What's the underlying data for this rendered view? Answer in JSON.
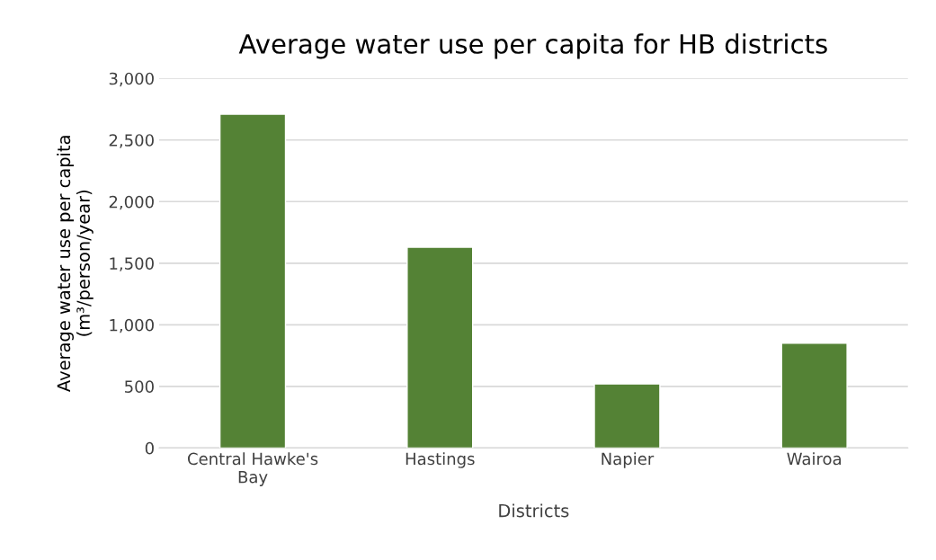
{
  "chart_data": {
    "type": "bar",
    "title": "Average water use per capita for HB districts",
    "xlabel": "Districts",
    "ylabel": "Average water use per capita\n(m³/person/year)",
    "categories": [
      "Central Hawke's\nBay",
      "Hastings",
      "Napier",
      "Wairoa"
    ],
    "values": [
      2710,
      1630,
      520,
      850
    ],
    "color": "#548235",
    "ylim": [
      0,
      3000
    ],
    "yticks": [
      0,
      {
        "value": 500,
        "label": "500"
      },
      {
        "value": 1000,
        "label": "1,000"
      },
      {
        "value": 1500,
        "label": "1,500"
      },
      {
        "value": 2000,
        "label": "2,000"
      },
      {
        "value": 2500,
        "label": "2,500"
      },
      {
        "value": 3000,
        "label": "3,000"
      }
    ],
    "grid": "y",
    "legend": false
  }
}
